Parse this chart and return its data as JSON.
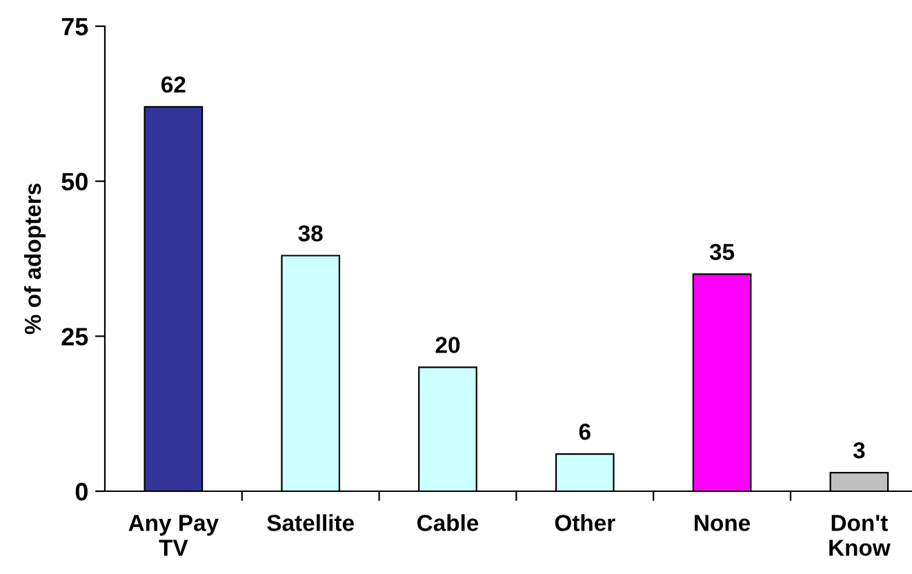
{
  "chart_data": {
    "type": "bar",
    "ylabel": "% of adopters",
    "categories": [
      "Any Pay\nTV",
      "Satellite",
      "Cable",
      "Other",
      "None",
      "Don't\nKnow"
    ],
    "values": [
      62,
      38,
      20,
      6,
      35,
      3
    ],
    "colors": [
      "#333399",
      "#ccffff",
      "#ccffff",
      "#ccffff",
      "#ff00ff",
      "#c0c0c0"
    ],
    "ylim": [
      0,
      75
    ],
    "yticks": [
      0,
      25,
      50,
      75
    ],
    "data_labels": true,
    "grid": false,
    "legend": false
  }
}
